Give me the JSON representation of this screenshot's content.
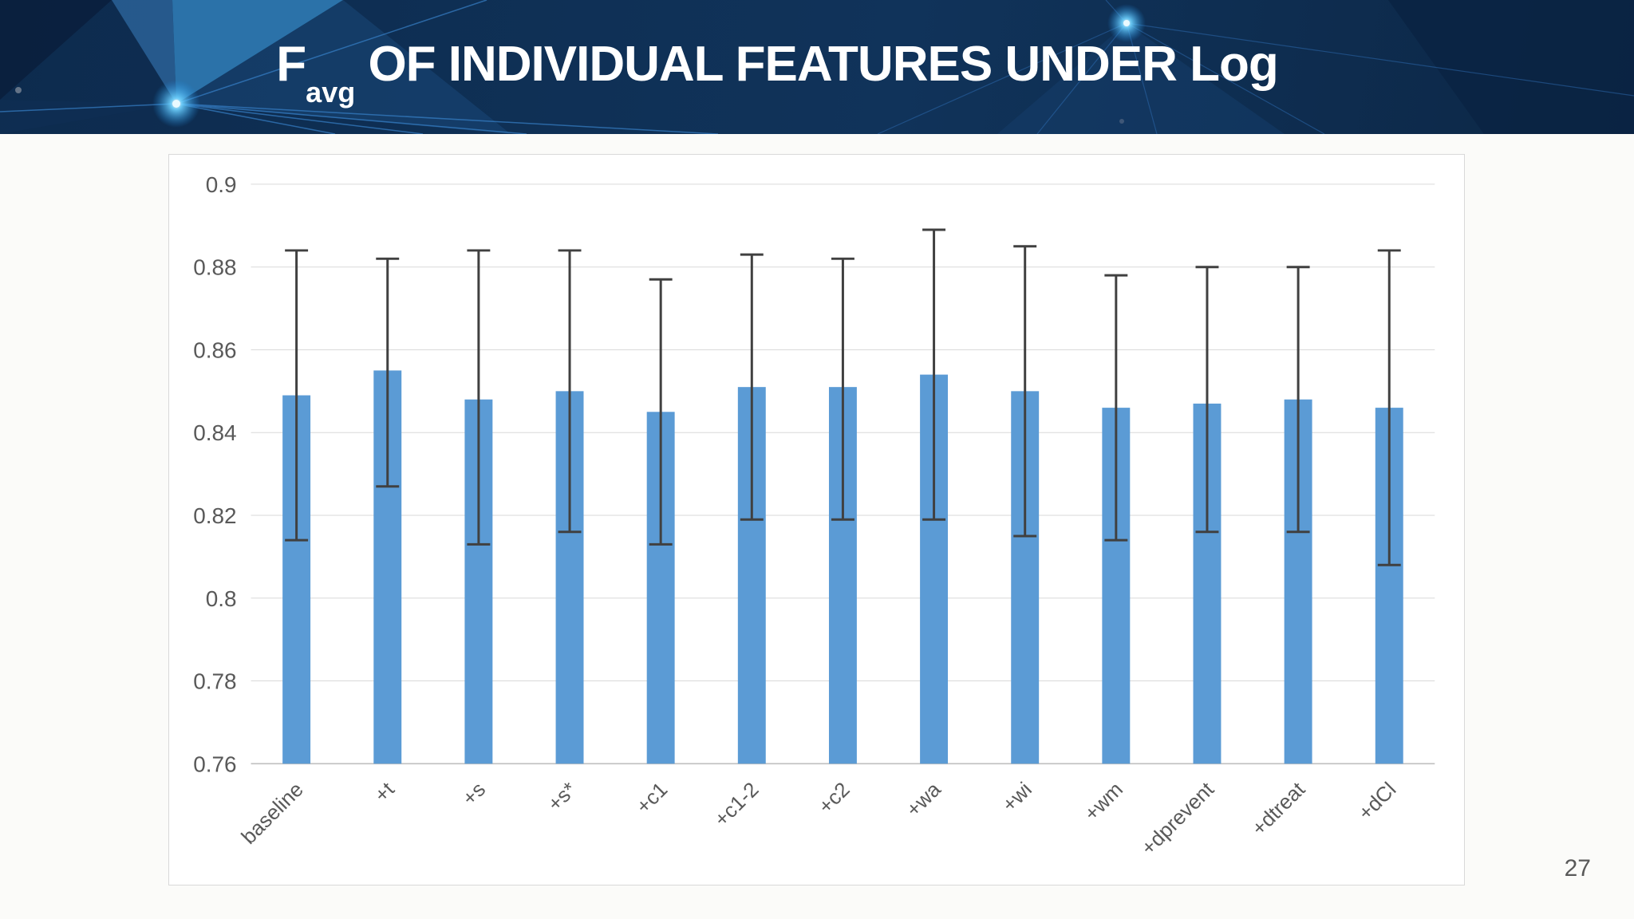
{
  "slide": {
    "title": {
      "prefix": "F",
      "subscript": "avg",
      "rest": " OF INDIVIDUAL FEATURES UNDER Log"
    },
    "page_number": "27"
  },
  "chart_data": {
    "type": "bar",
    "categories": [
      "baseline",
      "+t",
      "+s",
      "+s*",
      "+c1",
      "+c1-2",
      "+c2",
      "+wa",
      "+wi",
      "+wm",
      "+dprevent",
      "+dtreat",
      "+dCl"
    ],
    "series": [
      {
        "name": "Favg",
        "values": [
          0.849,
          0.855,
          0.848,
          0.85,
          0.845,
          0.851,
          0.851,
          0.854,
          0.85,
          0.846,
          0.847,
          0.848,
          0.846
        ]
      }
    ],
    "error_high": [
      0.884,
      0.882,
      0.884,
      0.884,
      0.877,
      0.883,
      0.882,
      0.889,
      0.885,
      0.878,
      0.88,
      0.88,
      0.884
    ],
    "error_low": [
      0.814,
      0.827,
      0.813,
      0.816,
      0.813,
      0.819,
      0.819,
      0.819,
      0.815,
      0.814,
      0.816,
      0.816,
      0.808
    ],
    "ylim": [
      0.76,
      0.9
    ],
    "yticks": [
      0.9,
      0.88,
      0.86,
      0.84,
      0.82,
      0.8,
      0.78,
      0.76
    ],
    "ytick_labels": [
      "0.9",
      "0.88",
      "0.86",
      "0.84",
      "0.82",
      "0.8",
      "0.78",
      "0.76"
    ],
    "grid": true,
    "legend_position": "none",
    "colors": {
      "bar": "#5b9bd5",
      "error_bar": "#404040",
      "gridline": "#d9d9d9",
      "axis_line": "#bfbfbf",
      "tick_label": "#595959"
    }
  }
}
